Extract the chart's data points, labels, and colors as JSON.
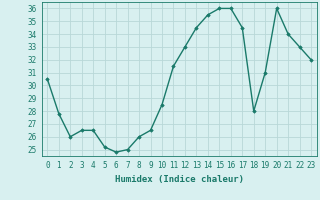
{
  "x": [
    0,
    1,
    2,
    3,
    4,
    5,
    6,
    7,
    8,
    9,
    10,
    11,
    12,
    13,
    14,
    15,
    16,
    17,
    18,
    19,
    20,
    21,
    22,
    23
  ],
  "y": [
    30.5,
    27.8,
    26.0,
    26.5,
    26.5,
    25.2,
    24.8,
    25.0,
    26.0,
    26.5,
    28.5,
    31.5,
    33.0,
    34.5,
    35.5,
    36.0,
    36.0,
    34.5,
    28.0,
    31.0,
    36.0,
    34.0,
    33.0,
    32.0
  ],
  "line_color": "#1a7a6a",
  "marker": "D",
  "marker_size": 1.8,
  "bg_color": "#d8f0f0",
  "grid_color": "#b8d8d8",
  "xlabel": "Humidex (Indice chaleur)",
  "xlim": [
    -0.5,
    23.5
  ],
  "ylim": [
    24.5,
    36.5
  ],
  "yticks": [
    25,
    26,
    27,
    28,
    29,
    30,
    31,
    32,
    33,
    34,
    35,
    36
  ],
  "xticks": [
    0,
    1,
    2,
    3,
    4,
    5,
    6,
    7,
    8,
    9,
    10,
    11,
    12,
    13,
    14,
    15,
    16,
    17,
    18,
    19,
    20,
    21,
    22,
    23
  ],
  "tick_fontsize": 5.5,
  "xlabel_fontsize": 6.5,
  "line_width": 1.0
}
